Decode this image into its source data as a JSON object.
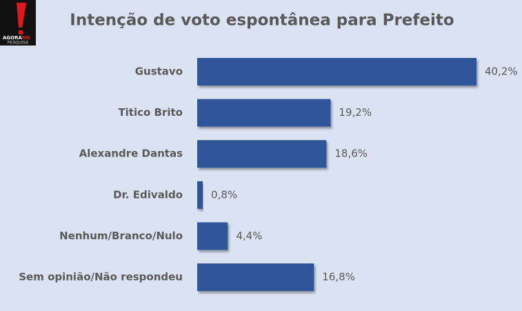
{
  "logo": {
    "words": [
      "AGORA",
      "RN"
    ],
    "tagline": "PESQUISA"
  },
  "chart_data": {
    "type": "hbar",
    "title": "Intenção de voto espontânea para Prefeito",
    "categories": [
      "Gustavo",
      "Titico Brito",
      "Alexandre Dantas",
      "Dr. Edivaldo",
      "Nenhum/Branco/Nulo",
      "Sem opinião/Não respondeu"
    ],
    "values": [
      40.2,
      19.2,
      18.6,
      0.8,
      4.4,
      16.8
    ],
    "value_labels": [
      "40,2%",
      "19,2%",
      "18,6%",
      "0,8%",
      "4,4%",
      "16,8%"
    ],
    "color": "#2f5597"
  }
}
